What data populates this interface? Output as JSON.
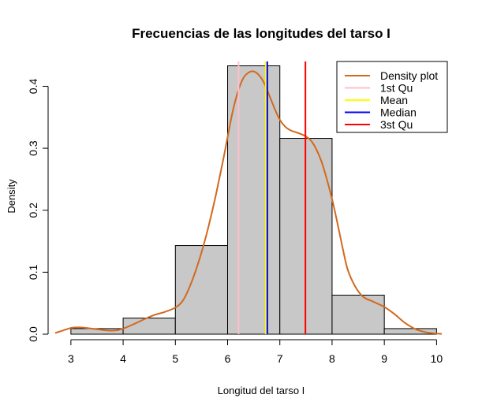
{
  "chart_data": {
    "type": "bar",
    "title": "Frecuencias de las longitudes del tarso I",
    "xlabel": "Longitud del tarso I",
    "ylabel": "Density",
    "xlim": [
      2.7,
      10.1
    ],
    "ylim": [
      0,
      0.44
    ],
    "x_ticks": [
      "3",
      "4",
      "5",
      "6",
      "7",
      "8",
      "9",
      "10"
    ],
    "y_ticks": [
      "0.0",
      "0.1",
      "0.2",
      "0.3",
      "0.4"
    ],
    "histogram": {
      "bins": [
        [
          3,
          4
        ],
        [
          4,
          5
        ],
        [
          5,
          6
        ],
        [
          6,
          7
        ],
        [
          7,
          8
        ],
        [
          8,
          9
        ],
        [
          9,
          10
        ]
      ],
      "density": [
        0.009,
        0.026,
        0.143,
        0.433,
        0.316,
        0.063,
        0.009
      ],
      "fill": "#c8c8c8",
      "border": "#000000"
    },
    "density_curve": {
      "name": "Density plot",
      "color": "#d2691e",
      "x": [
        2.7,
        2.85,
        3.0,
        3.15,
        3.3,
        3.5,
        3.7,
        3.85,
        4.0,
        4.2,
        4.4,
        4.6,
        4.8,
        5.0,
        5.15,
        5.3,
        5.45,
        5.6,
        5.75,
        5.9,
        6.0,
        6.1,
        6.2,
        6.3,
        6.4,
        6.5,
        6.6,
        6.7,
        6.8,
        6.9,
        7.0,
        7.1,
        7.2,
        7.3,
        7.4,
        7.5,
        7.6,
        7.7,
        7.8,
        7.9,
        8.0,
        8.1,
        8.2,
        8.3,
        8.45,
        8.6,
        8.8,
        9.0,
        9.2,
        9.4,
        9.6,
        9.8,
        10.0,
        10.1
      ],
      "y": [
        0.002,
        0.006,
        0.01,
        0.011,
        0.01,
        0.008,
        0.006,
        0.006,
        0.009,
        0.016,
        0.024,
        0.031,
        0.036,
        0.043,
        0.055,
        0.082,
        0.118,
        0.162,
        0.215,
        0.275,
        0.318,
        0.36,
        0.392,
        0.413,
        0.422,
        0.424,
        0.418,
        0.405,
        0.385,
        0.364,
        0.346,
        0.335,
        0.329,
        0.326,
        0.323,
        0.319,
        0.312,
        0.298,
        0.278,
        0.25,
        0.218,
        0.18,
        0.14,
        0.104,
        0.076,
        0.06,
        0.052,
        0.044,
        0.032,
        0.018,
        0.008,
        0.003,
        0.001,
        0.0005
      ]
    },
    "vlines": [
      {
        "name": "1st Qu",
        "x": 6.21,
        "color": "#ffc0cb"
      },
      {
        "name": "Mean",
        "x": 6.73,
        "color": "#ffff00"
      },
      {
        "name": "Median",
        "x": 6.76,
        "color": "#0000ff"
      },
      {
        "name": "3st Qu",
        "x": 7.49,
        "color": "#ff0000"
      }
    ],
    "legend": {
      "position": "top-right",
      "entries": [
        {
          "label": "Density plot",
          "color": "#d2691e"
        },
        {
          "label": "1st Qu",
          "color": "#ffc0cb"
        },
        {
          "label": "Mean",
          "color": "#ffff00"
        },
        {
          "label": "Median",
          "color": "#0000ff"
        },
        {
          "label": "3st Qu",
          "color": "#ff0000"
        }
      ]
    },
    "grid": false
  }
}
